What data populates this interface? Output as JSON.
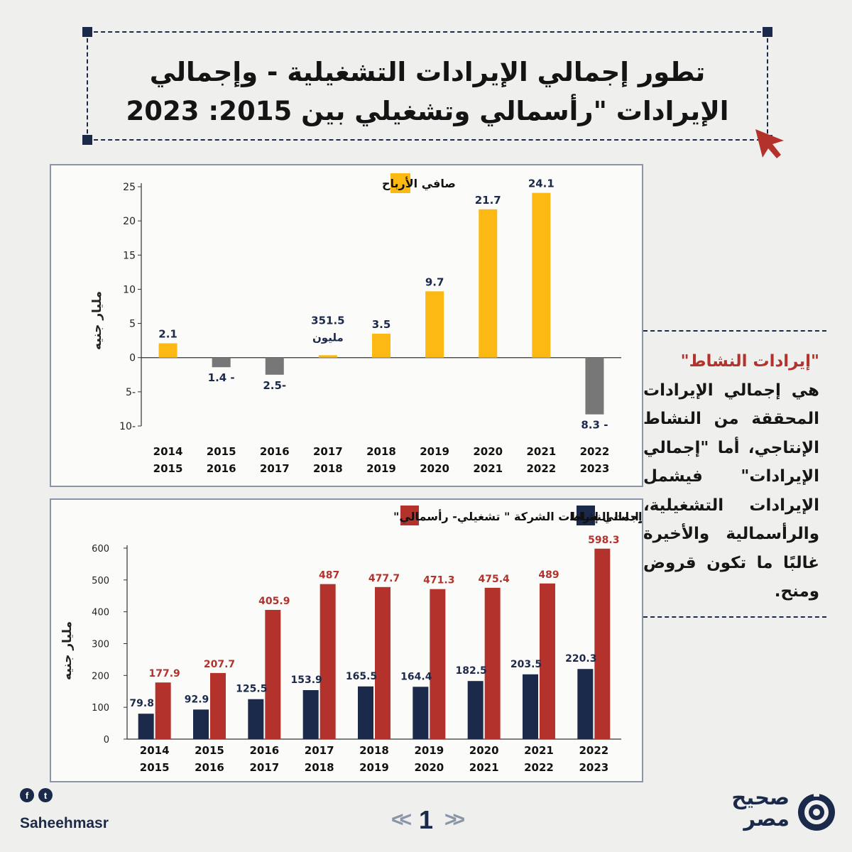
{
  "title": "تطور إجمالي الإيرادات التشغيلية - وإجمالي الإيرادات \"رأسمالي وتشغيلي بين 2015: 2023",
  "colors": {
    "navy": "#1b2a4a",
    "yellow": "#fdb913",
    "gray": "#777777",
    "red": "#b3322c"
  },
  "sidebar": {
    "highlight": "\"إيرادات النشاط\"",
    "text": "هي إجمالي الإيرادات المحققة من النشاط الإنتاجي، أما \"إجمالي الإيرادات\" فيشمل الإيرادات التشغيلية، والرأسمالية والأخيرة غالبًا ما تكون قروض ومنح."
  },
  "footer": {
    "handle": "Saheehmasr",
    "page": "1",
    "logo": "صحيح مصر",
    "icons": [
      "facebook-icon",
      "twitter-icon"
    ]
  },
  "chart_data": [
    {
      "type": "bar",
      "title": "",
      "ylabel": "مليار جنيه",
      "ylim": [
        -10,
        25
      ],
      "yticks": [
        "25",
        "20",
        "15",
        "10",
        "5",
        "0",
        "5-",
        "10-"
      ],
      "ytick_values": [
        25,
        20,
        15,
        10,
        5,
        0,
        -5,
        -10
      ],
      "categories": [
        [
          "2014",
          "2015"
        ],
        [
          "2015",
          "2016"
        ],
        [
          "2016",
          "2017"
        ],
        [
          "2017",
          "2018"
        ],
        [
          "2018",
          "2019"
        ],
        [
          "2019",
          "2020"
        ],
        [
          "2020",
          "2021"
        ],
        [
          "2021",
          "2022"
        ],
        [
          "2022",
          "2023"
        ]
      ],
      "series": [
        {
          "name": "صافي الأرباح",
          "values": [
            2.1,
            -1.4,
            -2.5,
            0.3515,
            3.5,
            9.7,
            21.7,
            24.1,
            -8.3
          ]
        }
      ],
      "data_labels": [
        "2.1",
        "1.4 -",
        "2.5-",
        "351.5",
        "3.5",
        "9.7",
        "21.7",
        "24.1",
        "8.3 -"
      ],
      "data_label_extra": {
        "index": 3,
        "text": "مليون"
      },
      "legend": "top-center"
    },
    {
      "type": "bar",
      "title": "",
      "ylabel": "مليار جنيه",
      "ylim": [
        0,
        600
      ],
      "yticks": [
        "600",
        "500",
        "400",
        "300",
        "200",
        "100",
        "0"
      ],
      "ytick_values": [
        600,
        500,
        400,
        300,
        200,
        100,
        0
      ],
      "categories": [
        [
          "2014",
          "2015"
        ],
        [
          "2015",
          "2016"
        ],
        [
          "2016",
          "2017"
        ],
        [
          "2017",
          "2018"
        ],
        [
          "2018",
          "2019"
        ],
        [
          "2019",
          "2020"
        ],
        [
          "2020",
          "2021"
        ],
        [
          "2021",
          "2022"
        ],
        [
          "2022",
          "2023"
        ]
      ],
      "series": [
        {
          "name": "إيرادات النشاط",
          "values": [
            79.8,
            92.9,
            125.5,
            153.9,
            165.5,
            164.4,
            182.5,
            203.5,
            220.3
          ],
          "labels": [
            "79.8",
            "92.9",
            "125.5",
            "153.9",
            "165.5",
            "164.4",
            "182.5",
            "203.5",
            "220.3"
          ]
        },
        {
          "name": "إجمالي إيرادات الشركة \" تشغيلي- رأسمالي\"",
          "values": [
            177.9,
            207.7,
            405.9,
            487,
            477.7,
            471.3,
            475.4,
            489,
            598.3
          ],
          "labels": [
            "177.9",
            "207.7",
            "405.9",
            "487",
            "477.7",
            "471.3",
            "475.4",
            "489",
            "598.3"
          ]
        }
      ],
      "legend": "top"
    }
  ]
}
